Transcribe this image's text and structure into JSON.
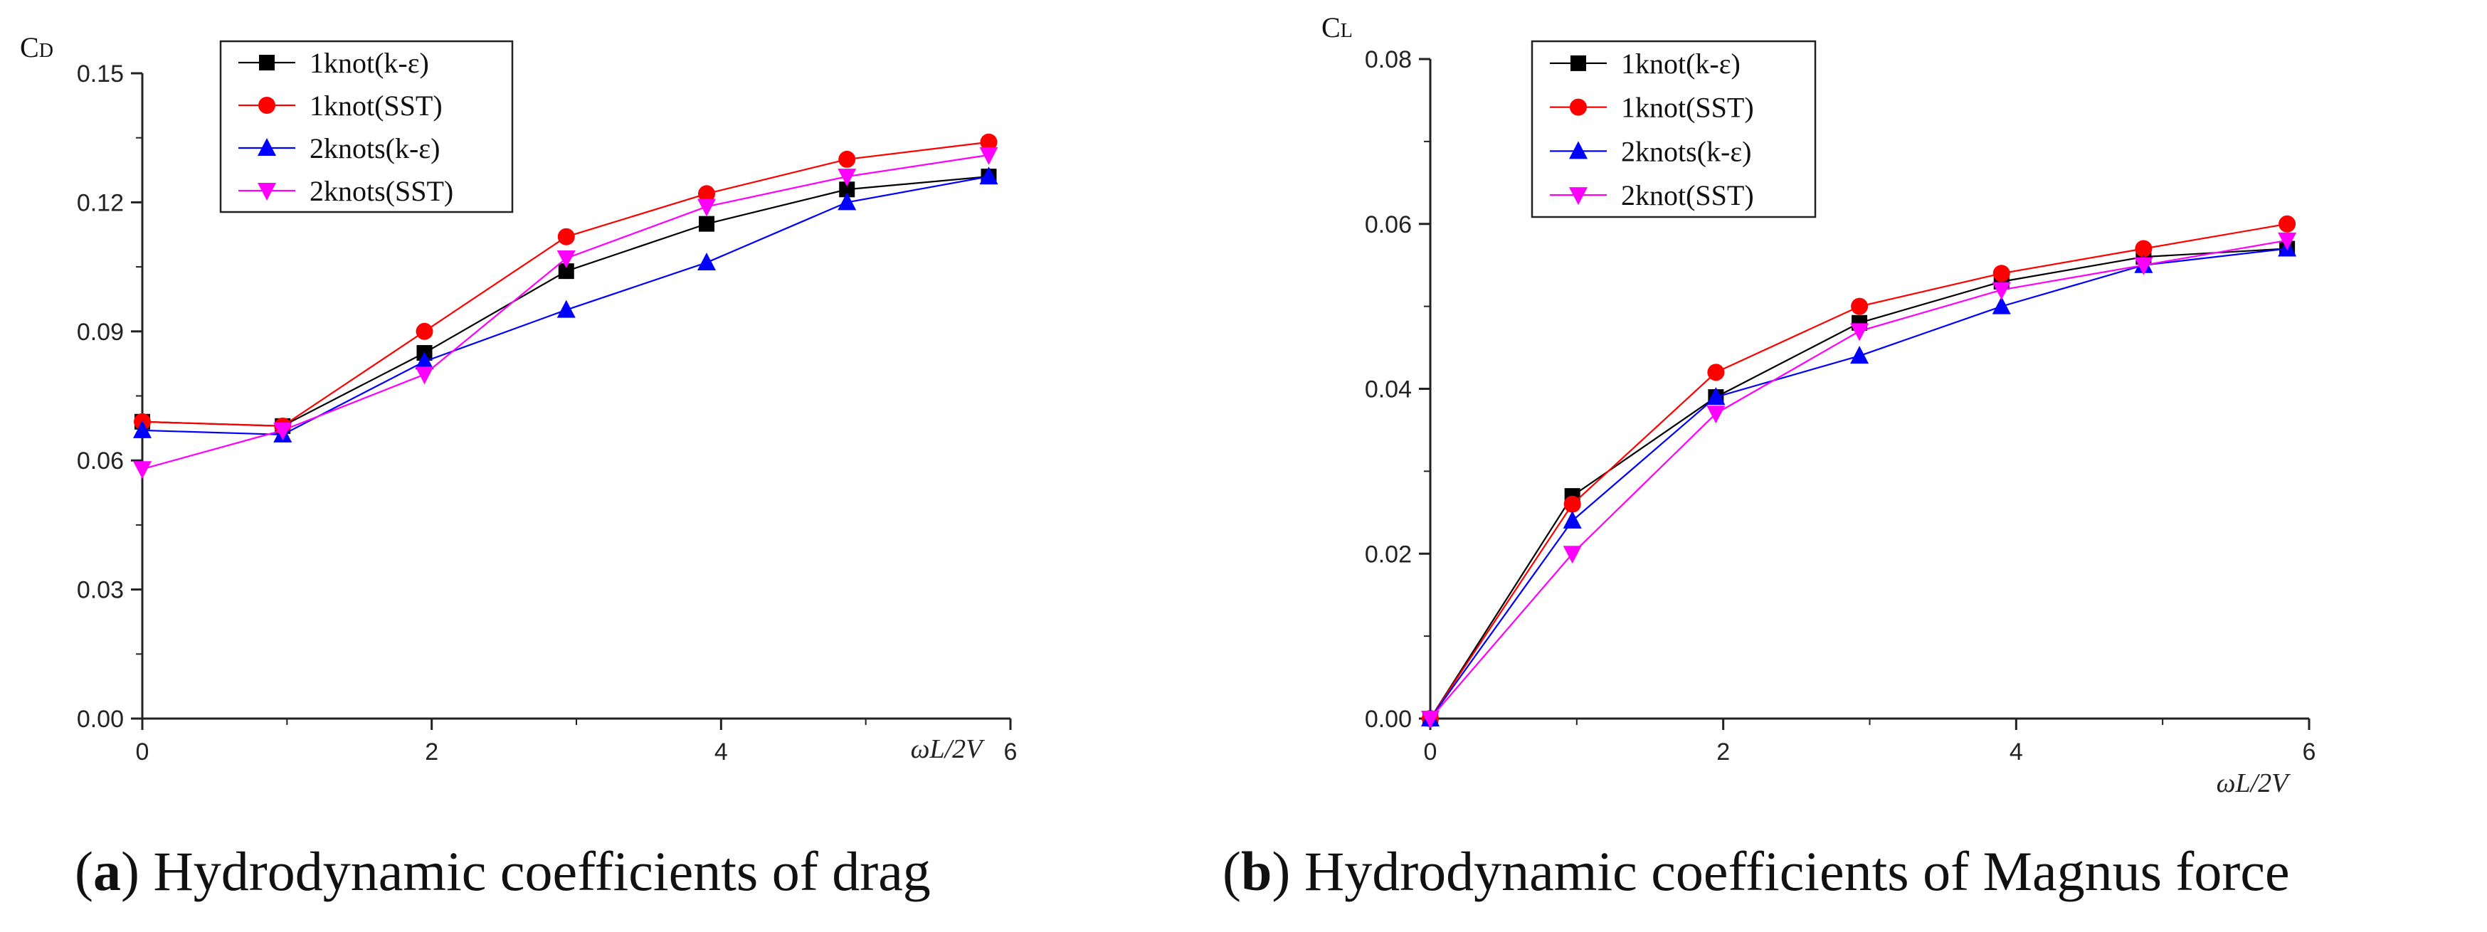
{
  "chart_data": [
    {
      "type": "line",
      "panel": "a",
      "ylabel_main": "C",
      "ylabel_sub": "D",
      "xlabel": "ωL/2V",
      "xlim": [
        0,
        6
      ],
      "ylim": [
        0,
        0.15
      ],
      "xticks": [
        "0",
        "2",
        "4",
        "6"
      ],
      "yticks": [
        "0.00",
        "0.03",
        "0.06",
        "0.09",
        "0.12",
        "0.15"
      ],
      "legend_position": "top-left",
      "series": [
        {
          "name": "1knot(k-ε)",
          "color": "#000000",
          "marker": "square",
          "x": [
            0,
            0.97,
            1.95,
            2.93,
            3.9,
            4.87,
            5.85
          ],
          "y": [
            0.069,
            0.068,
            0.085,
            0.104,
            0.115,
            0.123,
            0.126
          ]
        },
        {
          "name": "1knot(SST)",
          "color": "#ff0000",
          "marker": "circle",
          "x": [
            0,
            0.97,
            1.95,
            2.93,
            3.9,
            4.87,
            5.85
          ],
          "y": [
            0.069,
            0.068,
            0.09,
            0.112,
            0.122,
            0.13,
            0.134
          ]
        },
        {
          "name": "2knots(k-ε)",
          "color": "#0000ff",
          "marker": "triangle-up",
          "x": [
            0,
            0.97,
            1.95,
            2.93,
            3.9,
            4.87,
            5.85
          ],
          "y": [
            0.067,
            0.066,
            0.083,
            0.095,
            0.106,
            0.12,
            0.126
          ]
        },
        {
          "name": "2knots(SST)",
          "color": "#ff00ff",
          "marker": "triangle-down",
          "x": [
            0,
            0.97,
            1.95,
            2.93,
            3.9,
            4.87,
            5.85
          ],
          "y": [
            0.058,
            0.067,
            0.08,
            0.107,
            0.119,
            0.126,
            0.131
          ]
        }
      ]
    },
    {
      "type": "line",
      "panel": "b",
      "ylabel_main": "C",
      "ylabel_sub": "L",
      "xlabel": "ωL/2V",
      "xlim": [
        0,
        6
      ],
      "ylim": [
        0,
        0.08
      ],
      "xticks": [
        "0",
        "2",
        "4",
        "6"
      ],
      "yticks": [
        "0.00",
        "0.02",
        "0.04",
        "0.06",
        "0.08"
      ],
      "legend_position": "top-left",
      "series": [
        {
          "name": "1knot(k-ε)",
          "color": "#000000",
          "marker": "square",
          "x": [
            0,
            0.97,
            1.95,
            2.93,
            3.9,
            4.87,
            5.85
          ],
          "y": [
            0.0,
            0.027,
            0.039,
            0.048,
            0.053,
            0.056,
            0.057
          ]
        },
        {
          "name": "1knot(SST)",
          "color": "#ff0000",
          "marker": "circle",
          "x": [
            0,
            0.97,
            1.95,
            2.93,
            3.9,
            4.87,
            5.85
          ],
          "y": [
            0.0,
            0.026,
            0.042,
            0.05,
            0.054,
            0.057,
            0.06
          ]
        },
        {
          "name": "2knots(k-ε)",
          "color": "#0000ff",
          "marker": "triangle-up",
          "x": [
            0,
            0.97,
            1.95,
            2.93,
            3.9,
            4.87,
            5.85
          ],
          "y": [
            0.0,
            0.024,
            0.039,
            0.044,
            0.05,
            0.055,
            0.057
          ]
        },
        {
          "name": "2knot(SST)",
          "color": "#ff00ff",
          "marker": "triangle-down",
          "x": [
            0,
            0.97,
            1.95,
            2.93,
            3.9,
            4.87,
            5.85
          ],
          "y": [
            0.0,
            0.02,
            0.037,
            0.047,
            0.052,
            0.055,
            0.058
          ]
        }
      ]
    }
  ],
  "captions": [
    {
      "label": "a",
      "text": "Hydrodynamic coefficients of drag"
    },
    {
      "label": "b",
      "text": "Hydrodynamic coefficients of Magnus force"
    }
  ]
}
